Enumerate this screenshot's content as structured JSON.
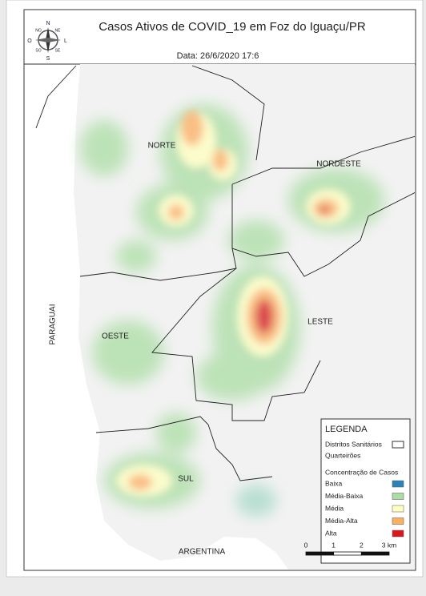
{
  "header": {
    "title": "Casos Ativos de COVID_19 em Foz do Iguaçu/PR",
    "date": "Data: 26/6/2020 17:6"
  },
  "compass": {
    "n": "N",
    "s": "S",
    "e": "L",
    "w": "O",
    "ne": "NE",
    "no": "NO",
    "se": "SE",
    "so": "SO"
  },
  "map_labels": {
    "norte": "NORTE",
    "nordeste": "NORDESTE",
    "leste": "LESTE",
    "oeste": "OESTE",
    "sul": "SUL",
    "paraguai": "PARAGUAI",
    "argentina": "ARGENTINA"
  },
  "legend": {
    "title": "LEGENDA",
    "districts": "Distritos Sanitários",
    "blocks": "Quarteirões",
    "subtitle": "Concentração de Casos",
    "classes": [
      {
        "label": "Baixa",
        "color": "#2b83ba"
      },
      {
        "label": "Média-Baixa",
        "color": "#abdda4"
      },
      {
        "label": "Média",
        "color": "#ffffbf"
      },
      {
        "label": "Média-Alta",
        "color": "#fdae61"
      },
      {
        "label": "Alta",
        "color": "#d7191c"
      }
    ]
  },
  "scale": [
    "0",
    "1",
    "2",
    "3 km"
  ]
}
